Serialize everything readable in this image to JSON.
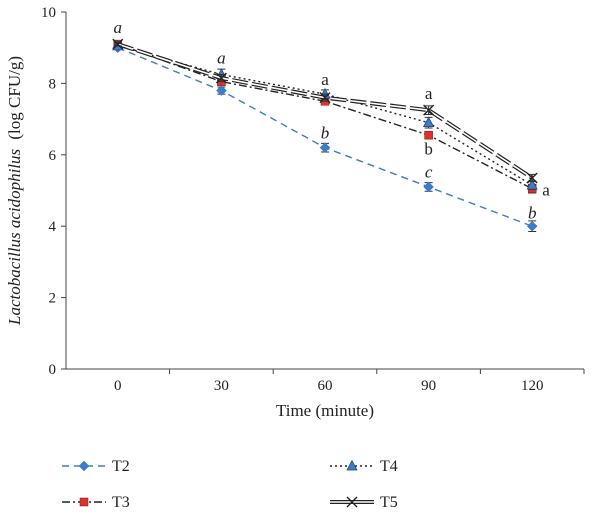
{
  "chart_data": {
    "type": "line",
    "title": "",
    "xlabel": "Time (minute)",
    "ylabel_italic": "Lactobacillus acidophilus",
    "ylabel_unit": "(log CFU/g)",
    "x": [
      0,
      30,
      60,
      90,
      120
    ],
    "x_tick_labels": [
      "0",
      "30",
      "60",
      "90",
      "120"
    ],
    "ylim": [
      0,
      10
    ],
    "y_ticks": [
      0,
      2,
      4,
      6,
      8,
      10
    ],
    "y_tick_labels": [
      "0",
      "2",
      "4",
      "6",
      "8",
      "10"
    ],
    "grid": false,
    "legend_position": "bottom",
    "series": [
      {
        "name": "T2",
        "values": [
          9.0,
          7.8,
          6.2,
          5.1,
          4.0
        ],
        "errors": [
          0.05,
          0.1,
          0.12,
          0.12,
          0.15
        ],
        "color": "#3d7cc9",
        "line_style": "dashed",
        "marker": "diamond"
      },
      {
        "name": "T3",
        "values": [
          9.1,
          8.05,
          7.5,
          6.55,
          5.05
        ],
        "errors": [
          0.05,
          0.1,
          0.1,
          0.1,
          0.12
        ],
        "color": "#222222",
        "marker_color": "#d9322f",
        "line_style": "dash-dot",
        "marker": "square"
      },
      {
        "name": "T4",
        "values": [
          9.05,
          8.25,
          7.7,
          6.9,
          5.15
        ],
        "errors": [
          0.05,
          0.15,
          0.12,
          0.15,
          0.12
        ],
        "color": "#222222",
        "marker_color": "#3d7cc9",
        "line_style": "dotted",
        "marker": "triangle"
      },
      {
        "name": "T5",
        "values": [
          9.1,
          8.15,
          7.6,
          7.25,
          5.35
        ],
        "errors": [
          0.05,
          0.1,
          0.1,
          0.12,
          0.1
        ],
        "color": "#222222",
        "line_style": "long-dash-double",
        "marker": "x"
      }
    ],
    "annotations": [
      {
        "text": "a",
        "x": 0,
        "y": 9.55,
        "italic": true
      },
      {
        "text": "a",
        "x": 30,
        "y": 8.7,
        "italic": true
      },
      {
        "text": "a",
        "x": 60,
        "y": 8.1,
        "italic": false
      },
      {
        "text": "b",
        "x": 60,
        "y": 6.6,
        "italic": true
      },
      {
        "text": "a",
        "x": 90,
        "y": 7.7,
        "italic": false
      },
      {
        "text": "b",
        "x": 90,
        "y": 6.15,
        "italic": false
      },
      {
        "text": "c",
        "x": 90,
        "y": 5.5,
        "italic": true
      },
      {
        "text": "a",
        "x": 120,
        "y": 5.0,
        "italic": false,
        "anchor": "right"
      },
      {
        "text": "b",
        "x": 120,
        "y": 4.35,
        "italic": true
      }
    ]
  }
}
